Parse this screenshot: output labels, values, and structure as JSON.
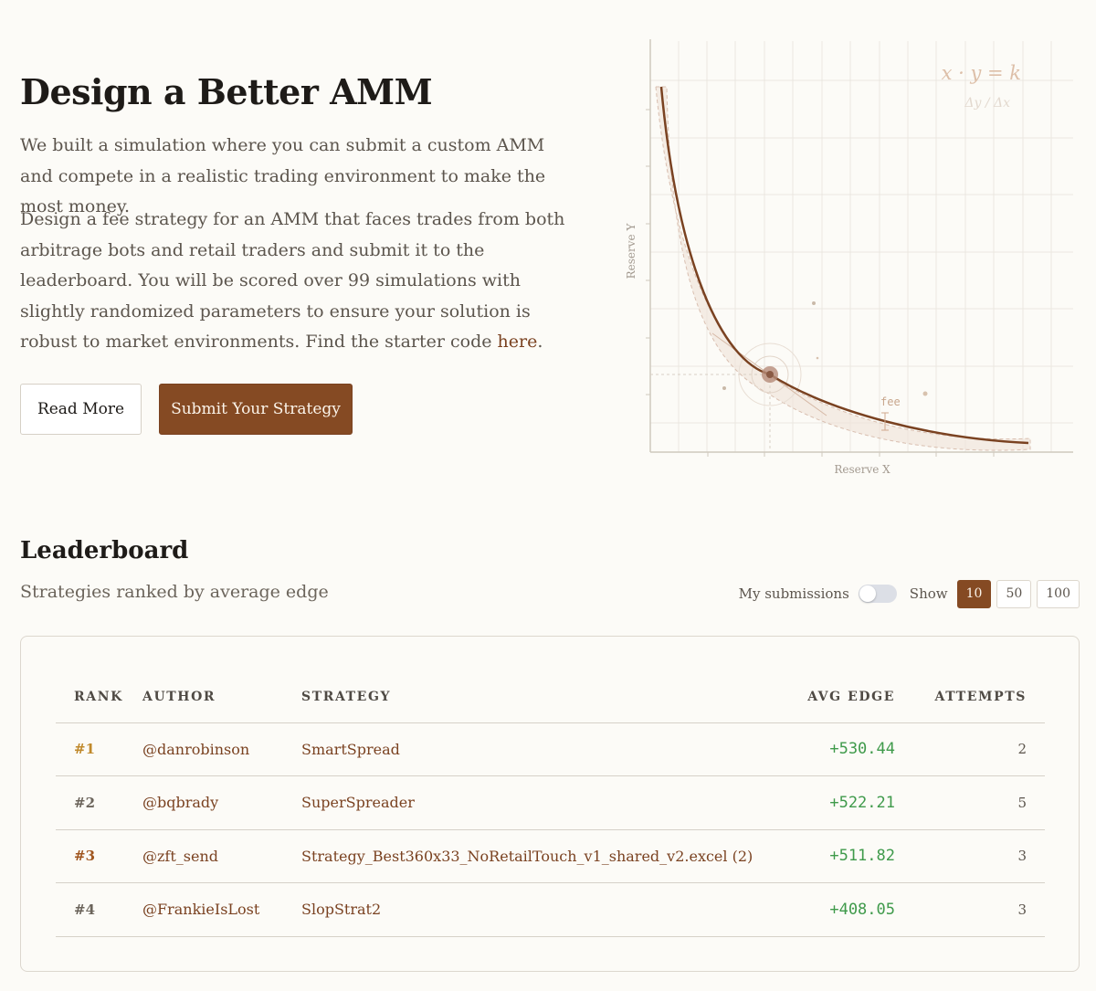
{
  "hero": {
    "title": "Design a Better AMM",
    "paragraph1": "We built a simulation where you can submit a custom AMM and compete in a realistic trading environment to make the most money.",
    "paragraph2": "Design a fee strategy for an AMM that faces trades from both arbitrage bots and retail traders and submit it to the leaderboard. You will be scored over 99 simulations with slightly randomized parameters to ensure your solution is robust to market environments. Find the starter code",
    "link_text": "here",
    "link_suffix": ".",
    "read_more_label": "Read More",
    "submit_label": "Submit Your Strategy"
  },
  "illustration": {
    "formula": "x · y = k",
    "formula_sub": "Δy / Δx",
    "x_axis_label": "Reserve X",
    "y_axis_label": "Reserve Y",
    "fee_label": "fee"
  },
  "leaderboard": {
    "title": "Leaderboard",
    "subtitle": "Strategies ranked by average edge",
    "my_submissions_label": "My submissions",
    "my_submissions_on": false,
    "show_label": "Show",
    "show_options": [
      "10",
      "50",
      "100"
    ],
    "show_selected": "10",
    "columns": {
      "rank": "RANK",
      "author": "AUTHOR",
      "strategy": "STRATEGY",
      "avg_edge": "AVG EDGE",
      "attempts": "ATTEMPTS"
    },
    "rows": [
      {
        "rank": "#1",
        "author": "@danrobinson",
        "strategy": "SmartSpread",
        "avg_edge": "+530.44",
        "attempts": "2"
      },
      {
        "rank": "#2",
        "author": "@bqbrady",
        "strategy": "SuperSpreader",
        "avg_edge": "+522.21",
        "attempts": "5"
      },
      {
        "rank": "#3",
        "author": "@zft_send",
        "strategy": "Strategy_Best360x33_NoRetailTouch_v1_shared_v2.excel (2)",
        "avg_edge": "+511.82",
        "attempts": "3"
      },
      {
        "rank": "#4",
        "author": "@FrankieIsLost",
        "strategy": "SlopStrat2",
        "avg_edge": "+408.05",
        "attempts": "3"
      }
    ]
  },
  "colors": {
    "accent": "#854a23",
    "link": "#7a4221",
    "positive": "#3f9a4b",
    "rank_gold": "#c0892b",
    "rank_bronze": "#a0561f",
    "background": "#fcfbf7"
  }
}
